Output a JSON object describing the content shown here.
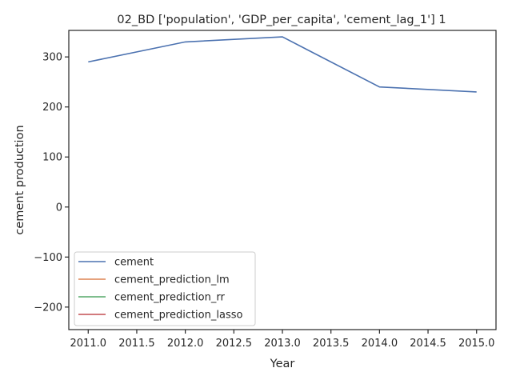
{
  "chart_data": {
    "type": "line",
    "title": "02_BD ['population', 'GDP_per_capita', 'cement_lag_1'] 1",
    "xlabel": "Year",
    "ylabel": "cement production",
    "xlim": [
      2010.8,
      2015.2
    ],
    "ylim": [
      -245,
      353
    ],
    "xticks": [
      2011.0,
      2011.5,
      2012.0,
      2012.5,
      2013.0,
      2013.5,
      2014.0,
      2014.5,
      2015.0
    ],
    "xtick_labels": [
      "2011.0",
      "2011.5",
      "2012.0",
      "2012.5",
      "2013.0",
      "2013.5",
      "2014.0",
      "2014.5",
      "2015.0"
    ],
    "yticks": [
      -200,
      -100,
      0,
      100,
      200,
      300
    ],
    "ytick_labels": [
      "−200",
      "−100",
      "0",
      "100",
      "200",
      "300"
    ],
    "grid": false,
    "legend_position": "lower-left",
    "series": [
      {
        "name": "cement",
        "color": "#4c72b0",
        "x": [
          2011,
          2012,
          2013,
          2014,
          2015
        ],
        "values": [
          290,
          330,
          340,
          240,
          230
        ]
      },
      {
        "name": "cement_prediction_lm",
        "color": "#dd8452",
        "x": [],
        "values": []
      },
      {
        "name": "cement_prediction_rr",
        "color": "#55a868",
        "x": [],
        "values": []
      },
      {
        "name": "cement_prediction_lasso",
        "color": "#c44e52",
        "x": [],
        "values": []
      }
    ]
  }
}
